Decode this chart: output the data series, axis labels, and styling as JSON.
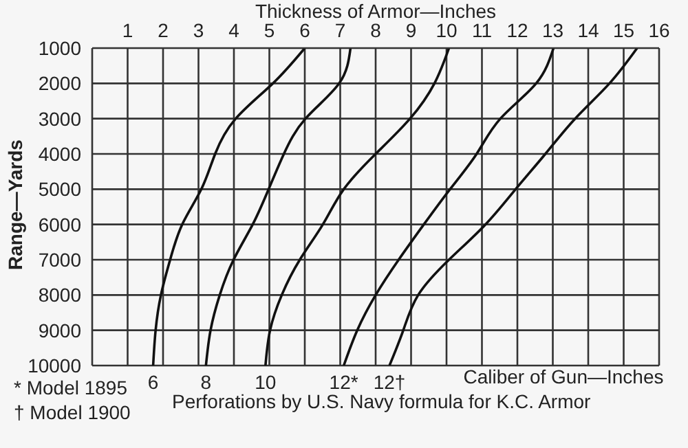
{
  "chart_data": {
    "type": "line",
    "xlabel": "Thickness of Armor—Inches",
    "ylabel": "Range—Yards",
    "legend_title": "Caliber of Gun—Inches",
    "annotations": [
      "* Model 1895",
      "† Model 1900",
      "Perforations by U.S. Navy formula for K.C. Armor"
    ],
    "xlim": [
      0,
      16
    ],
    "xticks": [
      1,
      2,
      3,
      4,
      5,
      6,
      7,
      8,
      9,
      10,
      11,
      12,
      13,
      14,
      15,
      16
    ],
    "ylim": [
      10000,
      1000
    ],
    "yticks": [
      1000,
      2000,
      3000,
      4000,
      5000,
      6000,
      7000,
      8000,
      9000,
      10000
    ],
    "grid": true,
    "marker": "none",
    "line_style": "solid",
    "series": [
      {
        "name": "6",
        "color": "#111111",
        "x": [
          6.0,
          5.1,
          4.05,
          3.47,
          3.08,
          2.54,
          2.2,
          1.94,
          1.79,
          1.72
        ],
        "values": [
          1000,
          2000,
          3000,
          4000,
          5000,
          6000,
          7000,
          8000,
          9000,
          10000
        ]
      },
      {
        "name": "8",
        "color": "#111111",
        "x": [
          7.29,
          6.97,
          6.02,
          5.41,
          4.98,
          4.53,
          3.99,
          3.6,
          3.34,
          3.21
        ],
        "values": [
          1000,
          2000,
          3000,
          4000,
          5000,
          6000,
          7000,
          8000,
          9000,
          10000
        ]
      },
      {
        "name": "10",
        "color": "#111111",
        "x": [
          10.07,
          9.66,
          8.97,
          8.0,
          7.1,
          6.51,
          5.86,
          5.35,
          5.02,
          4.89
        ],
        "values": [
          1000,
          2000,
          3000,
          4000,
          5000,
          6000,
          7000,
          8000,
          9000,
          10000
        ]
      },
      {
        "name": "12*",
        "color": "#111111",
        "x": [
          13.02,
          12.53,
          11.52,
          10.85,
          10.1,
          9.36,
          8.65,
          8.0,
          7.48,
          7.1
        ],
        "values": [
          1000,
          2000,
          3000,
          4000,
          5000,
          6000,
          7000,
          8000,
          9000,
          10000
        ]
      },
      {
        "name": "12†",
        "color": "#111111",
        "x": [
          15.38,
          14.6,
          13.63,
          12.79,
          11.95,
          11.1,
          10.07,
          9.2,
          8.78,
          8.39
        ],
        "values": [
          1000,
          2000,
          3000,
          4000,
          5000,
          6000,
          7000,
          8000,
          9000,
          10000
        ]
      }
    ]
  }
}
